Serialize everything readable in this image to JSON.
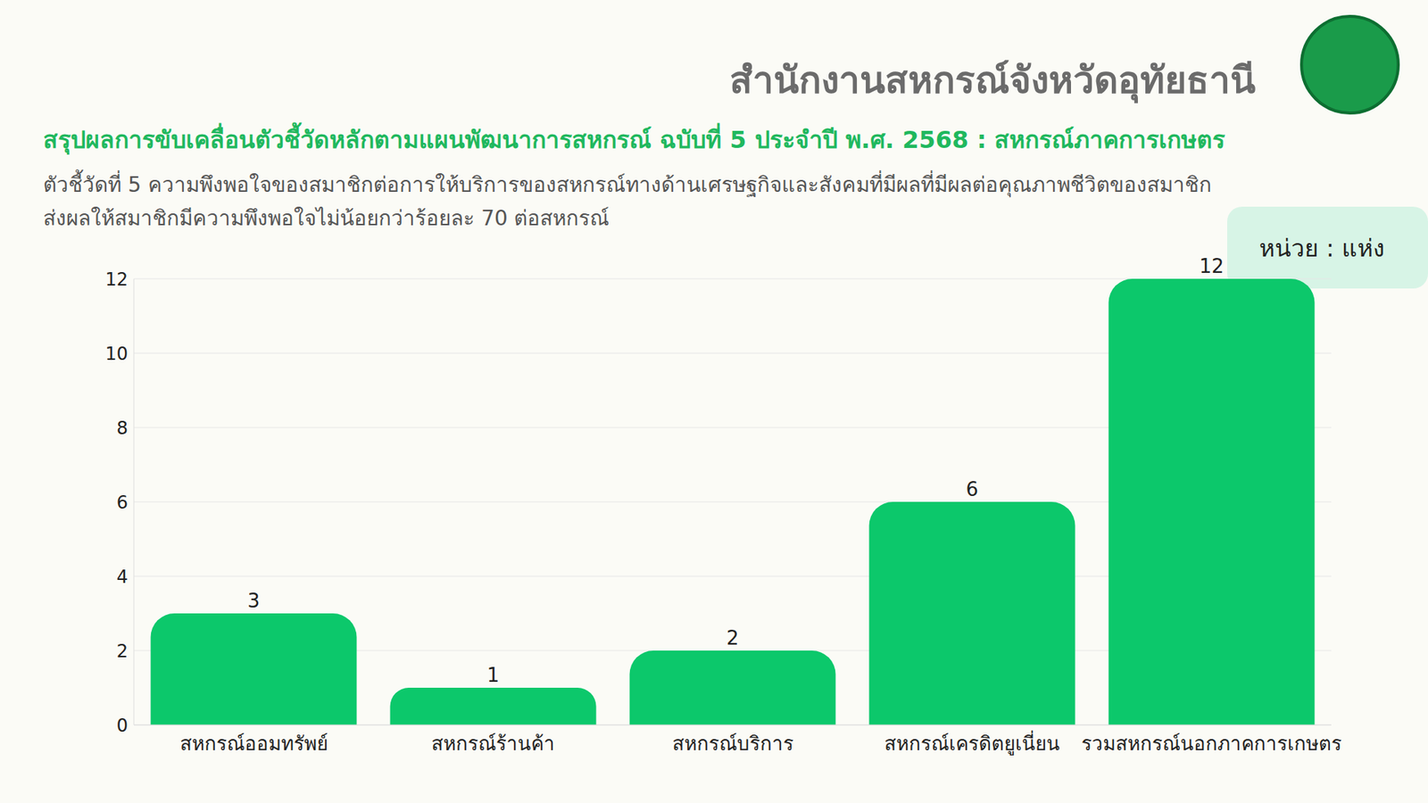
{
  "chart_data": {
    "type": "bar",
    "organization": "สำนักงานสหกรณ์จังหวัดอุทัยธานี",
    "title": "สรุปผลการขับเคลื่อนตัวชี้วัดหลักตามแผนพัฒนาการสหกรณ์ ฉบับที่ 5 ประจำปี พ.ศ. 2568 : สหกรณ์ภาคการเกษตร",
    "subtitle": [
      "ตัวชี้วัดที่ 5 ความพึงพอใจของสมาชิกต่อการให้บริการของสหกรณ์ทางด้านเศรษฐกิจและสังคมที่มีผลที่มีผลต่อคุณภาพชีวิตของสมาชิก",
      "ส่งผลให้สมาชิกมีความพึงพอใจไม่น้อยกว่าร้อยละ 70 ต่อสหกรณ์"
    ],
    "y_label": "หน่วย : แห่ง",
    "categories": [
      "สหกรณ์ออมทรัพย์",
      "สหกรณ์ร้านค้า",
      "สหกรณ์บริการ",
      "สหกรณ์เครดิตยูเนี่ยน",
      "รวมสหกรณ์นอกภาคการเกษตร"
    ],
    "values": [
      3,
      1,
      2,
      6,
      12
    ],
    "color": "#0cc86b",
    "ylim": [
      0,
      12
    ],
    "yticks": [
      0,
      2,
      4,
      6,
      8,
      10,
      12
    ],
    "grid": true,
    "data_labels": true
  }
}
